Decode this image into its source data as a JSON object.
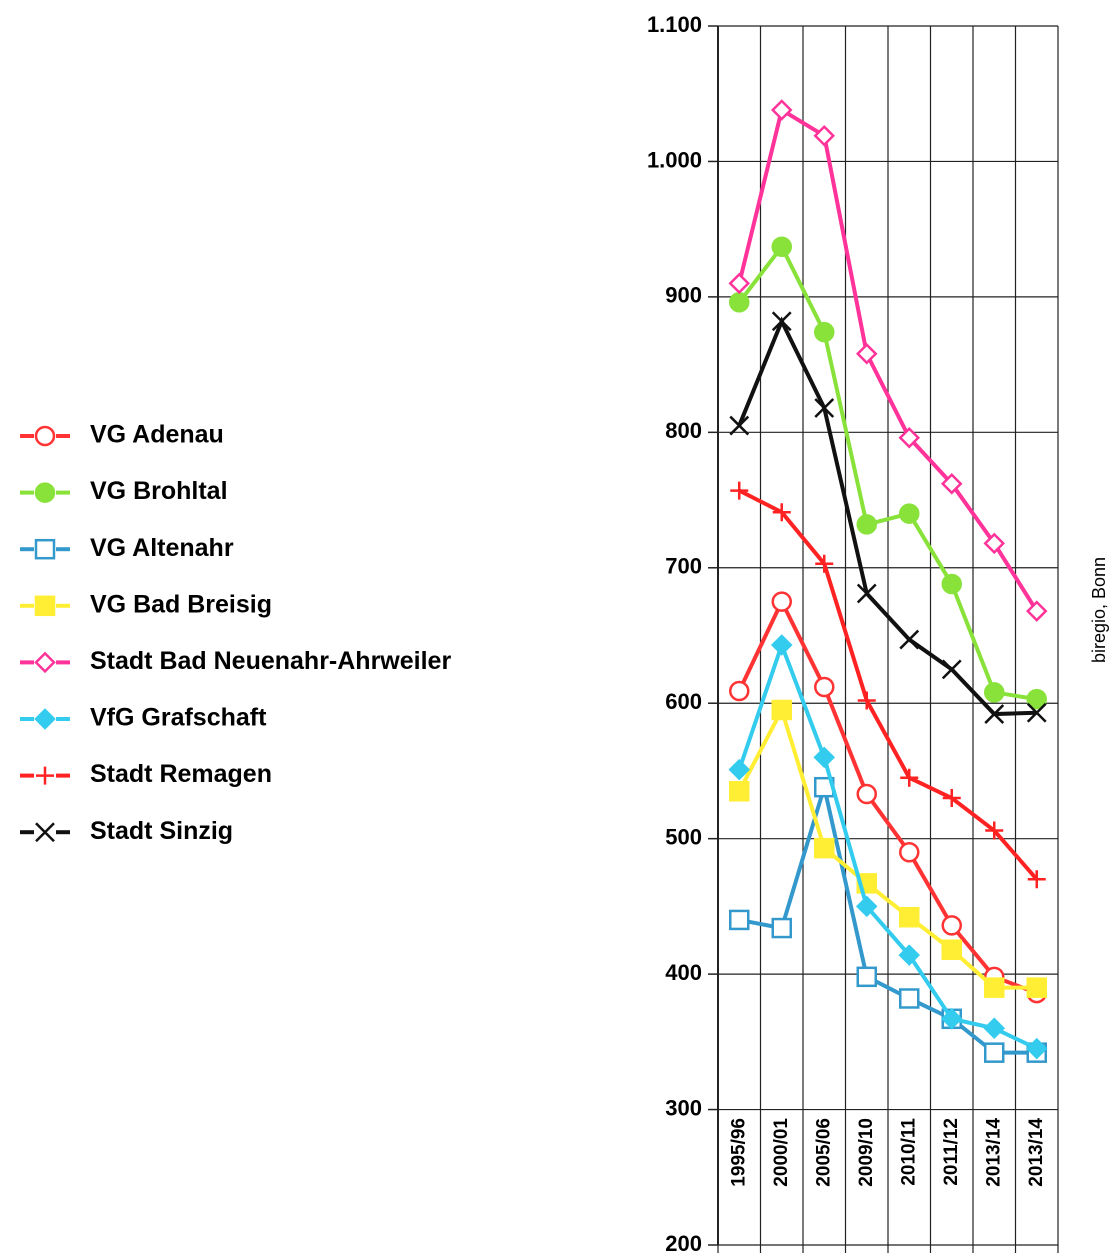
{
  "chart_data": {
    "type": "line",
    "source": "biregio, Bonn",
    "categories": [
      "1995/96",
      "2000/01",
      "2005/06",
      "2009/10",
      "2010/11",
      "2011/12",
      "2013/14",
      "2013/14"
    ],
    "ylim": [
      200,
      1100
    ],
    "yticks": [
      200,
      300,
      400,
      500,
      600,
      700,
      800,
      900,
      {
        "value": 1000,
        "label": "1.000"
      },
      {
        "value": 1100,
        "label": "1.100"
      }
    ],
    "grid": true,
    "legend": "left",
    "series": [
      {
        "name": "VG Adenau",
        "color": "#ff3333",
        "marker": "circle-open",
        "values": [
          609,
          675,
          612,
          533,
          490,
          436,
          398,
          386
        ]
      },
      {
        "name": "VG Brohltal",
        "color": "#88e23a",
        "marker": "circle",
        "values": [
          896,
          937,
          874,
          732,
          740,
          688,
          608,
          603
        ]
      },
      {
        "name": "VG Altenahr",
        "color": "#3399cc",
        "marker": "square-open",
        "values": [
          440,
          434,
          538,
          398,
          382,
          367,
          342,
          342
        ]
      },
      {
        "name": "VG Bad Breisig",
        "color": "#ffee33",
        "marker": "square",
        "values": [
          535,
          595,
          493,
          467,
          442,
          418,
          390,
          390
        ]
      },
      {
        "name": "Stadt Bad Neuenahr-Ahrweiler",
        "color": "#ff3399",
        "marker": "diamond-open",
        "values": [
          910,
          1038,
          1019,
          858,
          796,
          762,
          718,
          668
        ]
      },
      {
        "name": "VfG Grafschaft",
        "color": "#33ccee",
        "marker": "diamond",
        "values": [
          551,
          643,
          560,
          450,
          414,
          367,
          360,
          345
        ]
      },
      {
        "name": "Stadt Remagen",
        "color": "#ff2222",
        "marker": "plus",
        "values": [
          757,
          741,
          703,
          602,
          545,
          530,
          506,
          470
        ]
      },
      {
        "name": "Stadt Sinzig",
        "color": "#111111",
        "marker": "x",
        "values": [
          805,
          882,
          818,
          681,
          647,
          625,
          592,
          593
        ]
      }
    ]
  }
}
